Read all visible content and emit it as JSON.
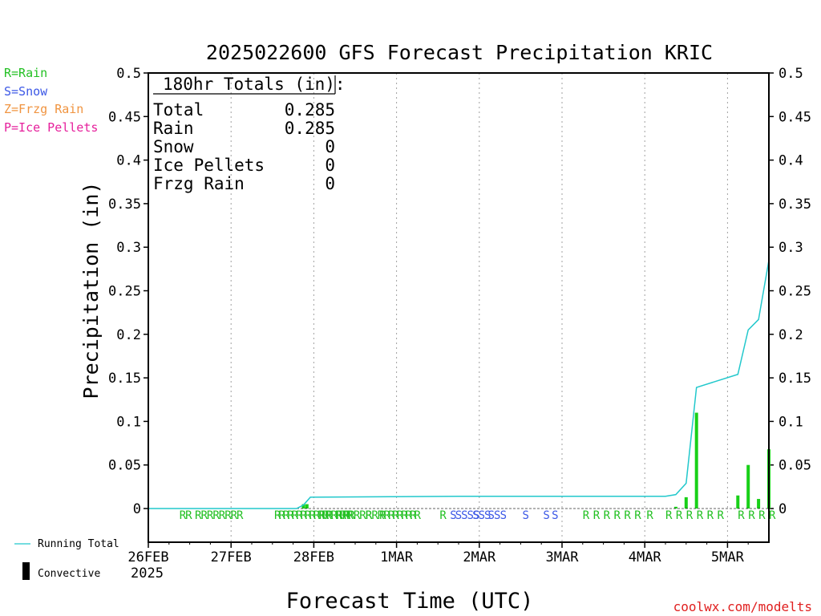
{
  "chart_data": {
    "type": "bar",
    "title": "2025022600 GFS Forecast Precipitation KRIC",
    "xlabel": "Forecast Time (UTC)",
    "ylabel": "Precipitation (in)",
    "ylim": [
      0,
      0.5
    ],
    "y_ticks": [
      "0",
      "0.05",
      "0.1",
      "0.15",
      "0.2",
      "0.25",
      "0.3",
      "0.35",
      "0.4",
      "0.45",
      "0.5"
    ],
    "forecast_hours": 180,
    "x_ticks": [
      "26FEB",
      "27FEB",
      "28FEB",
      "1MAR",
      "2MAR",
      "3MAR",
      "4MAR",
      "5MAR"
    ],
    "x_year": "2025",
    "grid": "vertical dotted",
    "series": [
      {
        "name": "Convective",
        "hours": [
          45,
          46,
          153,
          156,
          159,
          171,
          174,
          177,
          180
        ],
        "values": [
          0.005,
          0.005,
          0.002,
          0.013,
          0.11,
          0.015,
          0.05,
          0.011,
          0.068
        ]
      },
      {
        "name": "Running Total",
        "hours": [
          0,
          43,
          45,
          47,
          90,
          150,
          153,
          156,
          159,
          171,
          174,
          177,
          180
        ],
        "values": [
          0,
          0,
          0.004,
          0.013,
          0.014,
          0.014,
          0.016,
          0.029,
          0.139,
          0.154,
          0.205,
          0.217,
          0.285
        ]
      }
    ],
    "ptype_legend": [
      {
        "label": "R=Rain",
        "color": "#22c022"
      },
      {
        "label": "S=Snow",
        "color": "#3c58e6"
      },
      {
        "label": "Z=Frzg Rain",
        "color": "#f09440"
      },
      {
        "label": "P=Ice Pellets",
        "color": "#e6209c"
      }
    ],
    "ptype_row": [
      {
        "h": 9,
        "t": "RR",
        "c": "rain"
      },
      {
        "h": 13.5,
        "t": "RRRRRRRR",
        "c": "rain"
      },
      {
        "h": 36.5,
        "t": "RRRRRRRRRRRRRRRRRR",
        "c": "rain"
      },
      {
        "h": 49.5,
        "t": "RR",
        "c": "rain"
      },
      {
        "h": 54.5,
        "t": "RR",
        "c": "rain"
      },
      {
        "h": 57.5,
        "t": "R",
        "c": "rain"
      },
      {
        "h": 59.5,
        "t": "RRR",
        "c": "rain"
      },
      {
        "h": 63,
        "t": "RRR",
        "c": "rain"
      },
      {
        "h": 67,
        "t": "RRRRRRRRR",
        "c": "rain"
      },
      {
        "h": 84.5,
        "t": "R",
        "c": "rain"
      },
      {
        "h": 87.5,
        "t": "S",
        "c": "snow"
      },
      {
        "h": 89,
        "t": "SSSS",
        "c": "snow"
      },
      {
        "h": 94,
        "t": "SSS",
        "c": "snow"
      },
      {
        "h": 98.5,
        "t": "SS",
        "c": "snow"
      },
      {
        "h": 102,
        "t": "S",
        "c": "snow"
      },
      {
        "h": 108.5,
        "t": "S",
        "c": "snow"
      },
      {
        "h": 114.5,
        "t": "S",
        "c": "snow"
      },
      {
        "h": 117,
        "t": "S",
        "c": "snow"
      },
      {
        "h": 126,
        "t": "R",
        "c": "rain"
      },
      {
        "h": 129,
        "t": "R",
        "c": "rain"
      },
      {
        "h": 132,
        "t": "R",
        "c": "rain"
      },
      {
        "h": 135,
        "t": "R",
        "c": "rain"
      },
      {
        "h": 138,
        "t": "R",
        "c": "rain"
      },
      {
        "h": 141,
        "t": "R",
        "c": "rain"
      },
      {
        "h": 144.5,
        "t": "R",
        "c": "rain"
      },
      {
        "h": 150,
        "t": "R",
        "c": "rain"
      },
      {
        "h": 153,
        "t": "R",
        "c": "rain"
      },
      {
        "h": 156,
        "t": "R",
        "c": "rain"
      },
      {
        "h": 159,
        "t": "R",
        "c": "rain"
      },
      {
        "h": 162,
        "t": "R",
        "c": "rain"
      },
      {
        "h": 165,
        "t": "R",
        "c": "rain"
      },
      {
        "h": 171,
        "t": "R",
        "c": "rain"
      },
      {
        "h": 174,
        "t": "R",
        "c": "rain"
      },
      {
        "h": 177,
        "t": "R",
        "c": "rain"
      },
      {
        "h": 180,
        "t": "R",
        "c": "rain"
      }
    ]
  },
  "totals": {
    "title": "180hr Totals (in):",
    "rows": [
      {
        "label": "Total",
        "value": "0.285"
      },
      {
        "label": "Rain",
        "value": "0.285"
      },
      {
        "label": "Snow",
        "value": "0"
      },
      {
        "label": "Ice Pellets",
        "value": "0"
      },
      {
        "label": "Frzg Rain",
        "value": "0"
      }
    ]
  },
  "legend": {
    "running_total": "Running Total",
    "convective": "Convective"
  },
  "credit": "coolwx.com/modelts",
  "colors": {
    "bar": "#18d018",
    "line": "#22c8cc",
    "rain": "#22c022",
    "snow": "#3c58e6",
    "frzg": "#f09440",
    "pellets": "#e6209c",
    "credit": "#e02020",
    "axis": "#000000",
    "grid": "#a0a0a0"
  }
}
